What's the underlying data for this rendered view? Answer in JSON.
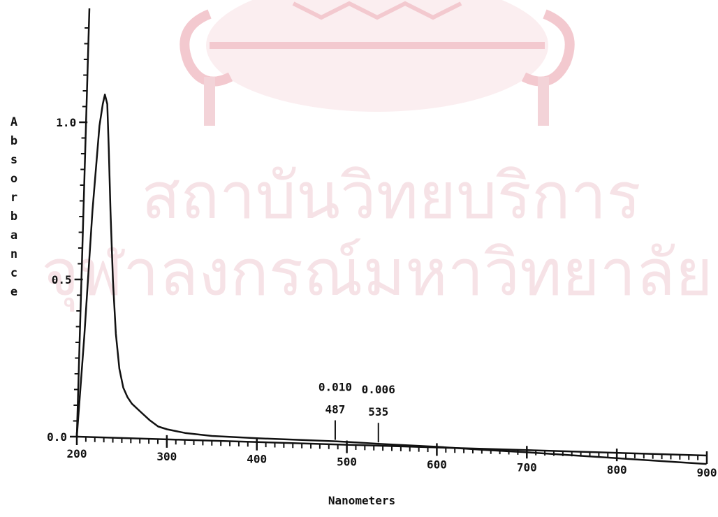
{
  "watermark": {
    "line1": "สถาบันวิทยบริการ",
    "line2": "จุฬาลงกรณ์มหาวิทยาลัย",
    "seal": "university-seal-watermark",
    "color": "#f6e2e6",
    "seal_color": "#f3c9cf"
  },
  "chart_data": {
    "type": "line",
    "title": "",
    "xlabel": "Nanometers",
    "ylabel": "Absorbance",
    "xlim": [
      200,
      900
    ],
    "ylim": [
      0,
      1.2
    ],
    "x_ticks": [
      200,
      300,
      400,
      500,
      600,
      700,
      800,
      900
    ],
    "x_tick_labels": [
      "200",
      "300",
      "400",
      "500",
      "600",
      "700",
      "800",
      "900"
    ],
    "y_ticks": [
      0.0,
      0.5,
      1.0
    ],
    "y_tick_labels": [
      "0.0",
      "0.5",
      "1.0"
    ],
    "grid": false,
    "legend": "none",
    "line_color": "#111111",
    "series": [
      {
        "x": [
          200,
          205,
          210,
          215,
          218,
          220,
          223,
          226,
          230,
          235,
          240,
          245,
          250,
          255,
          260,
          270,
          280,
          290,
          300,
          320,
          350,
          400,
          450,
          487,
          500,
          535,
          550,
          600,
          650,
          700,
          750,
          800,
          850,
          900
        ],
        "y": [
          0.0,
          0.32,
          0.72,
          0.99,
          1.06,
          1.09,
          1.06,
          0.92,
          0.72,
          0.5,
          0.33,
          0.22,
          0.16,
          0.13,
          0.11,
          0.085,
          0.06,
          0.04,
          0.032,
          0.022,
          0.015,
          0.012,
          0.011,
          0.01,
          0.009,
          0.006,
          0.005,
          0.002,
          -0.003,
          -0.007,
          -0.012,
          -0.017,
          -0.022,
          -0.027
        ]
      }
    ],
    "annotations": [
      {
        "x": 487,
        "value_text": "0.010",
        "wavelength_text": "487"
      },
      {
        "x": 535,
        "value_text": "0.006",
        "wavelength_text": "535"
      }
    ]
  }
}
